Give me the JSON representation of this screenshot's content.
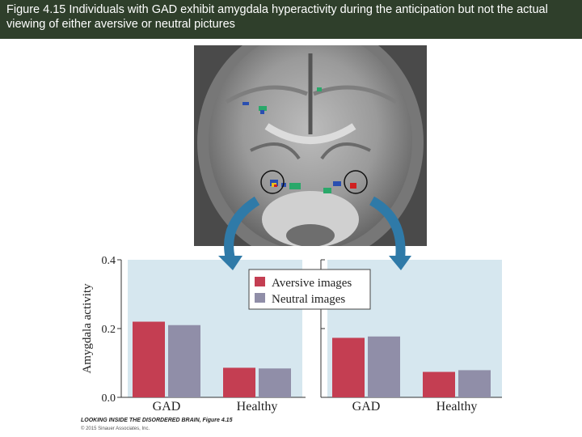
{
  "header": {
    "title": "Figure 4.15 Individuals with GAD exhibit amygdala hyperactivity during the anticipation but not the actual viewing of either aversive or neutral pictures"
  },
  "chart_data": {
    "type": "bar",
    "ylabel": "Amygdala activity",
    "ylim": [
      0,
      0.4
    ],
    "yticks": [
      "0.0",
      "0.2",
      "0.4"
    ],
    "legend_position": "top-center",
    "series_colors": [
      "#c43e52",
      "#908ea8"
    ],
    "panel_background": "#d6e7ef",
    "panels": [
      {
        "categories": [
          "GAD",
          "Healthy"
        ],
        "series": [
          {
            "name": "Aversive images",
            "values": [
              0.22,
              0.086
            ]
          },
          {
            "name": "Neutral images",
            "values": [
              0.21,
              0.084
            ]
          }
        ]
      },
      {
        "categories": [
          "GAD",
          "Healthy"
        ],
        "series": [
          {
            "name": "Aversive images",
            "values": [
              0.173,
              0.074
            ]
          },
          {
            "name": "Neutral images",
            "values": [
              0.177,
              0.079
            ]
          }
        ]
      }
    ]
  },
  "footer": {
    "book": "LOOKING INSIDE THE DISORDERED BRAIN, Figure 4.15",
    "copyright": "© 2015 Sinauer Associates, Inc."
  }
}
